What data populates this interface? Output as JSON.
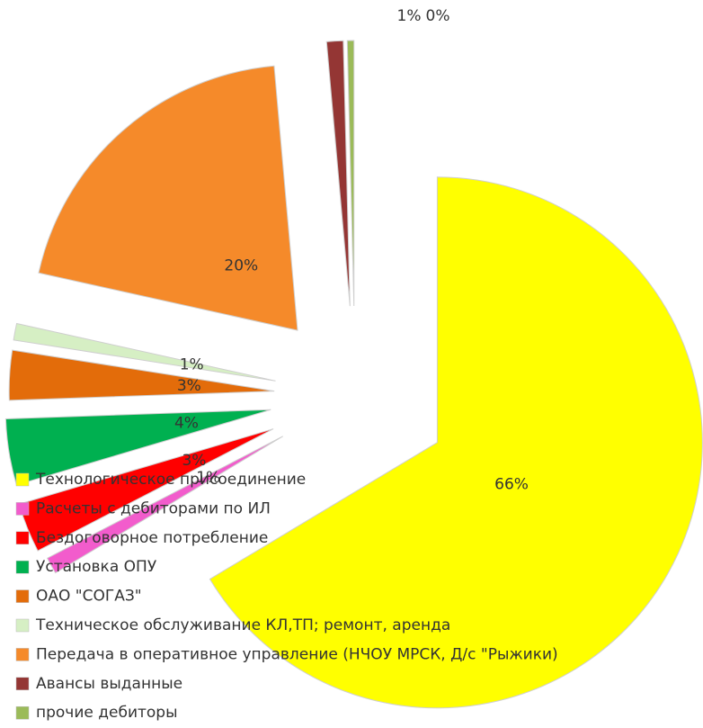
{
  "chart_data": {
    "type": "pie",
    "categories": [
      "Технологическое присоединение",
      "Расчеты с дебиторами по ИЛ",
      "Бездоговорное потребление",
      "Установка ОПУ",
      "ОАО \"СОГАЗ\"",
      "Техническое обслуживание КЛ,ТП; ремонт, аренда",
      "Передача в оперативное управление (НЧОУ МРСК, Д/с \"Рыжики)",
      "Авансы выданные",
      "прочие дебиторы"
    ],
    "values": [
      66,
      1,
      3,
      4,
      3,
      1,
      20,
      1,
      0.4
    ],
    "value_labels": [
      "66%",
      "1%",
      "3%",
      "4%",
      "3%",
      "1%",
      "20%",
      "1%",
      "0%"
    ],
    "colors": [
      "#ffff00",
      "#f25ccc",
      "#ff0000",
      "#00b050",
      "#e36c0a",
      "#d6efc4",
      "#f58a2a",
      "#943634",
      "#9bbb59"
    ],
    "legend": "left"
  }
}
